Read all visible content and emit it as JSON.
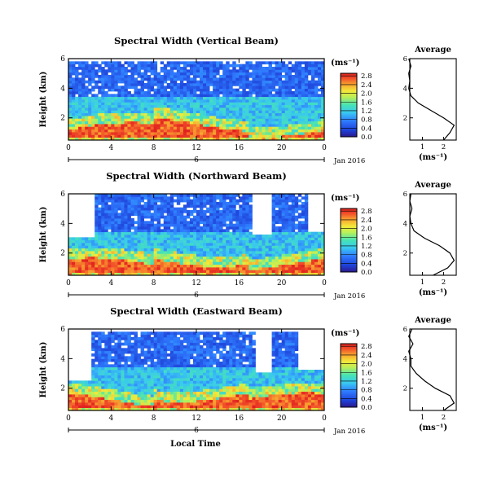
{
  "panels": [
    {
      "title": "Spectral Width (Vertical Beam)",
      "ylabel": "Height (km)",
      "xticks": [
        "0",
        "4",
        "8",
        "12",
        "16",
        "20",
        "0"
      ],
      "yticks": [
        "2",
        "4",
        "6"
      ],
      "date_mark": "6",
      "date_label": "Jan 2016",
      "avg_title": "Average"
    },
    {
      "title": "Spectral Width (Northward Beam)",
      "ylabel": "Height (km)",
      "xticks": [
        "0",
        "4",
        "8",
        "12",
        "16",
        "20",
        "0"
      ],
      "yticks": [
        "2",
        "4",
        "6"
      ],
      "date_mark": "6",
      "date_label": "Jan 2016",
      "avg_title": "Average"
    },
    {
      "title": "Spectral Width (Eastward Beam)",
      "ylabel": "Height (km)",
      "xticks": [
        "0",
        "4",
        "8",
        "12",
        "16",
        "20",
        "0"
      ],
      "yticks": [
        "2",
        "4",
        "6"
      ],
      "date_mark": "6",
      "date_label": "Jan 2016",
      "avg_title": "Average"
    }
  ],
  "colorbar": {
    "unit": "(ms⁻¹)",
    "ticks": [
      "0.0",
      "0.4",
      "0.8",
      "1.2",
      "1.6",
      "2.0",
      "2.4",
      "2.8"
    ]
  },
  "avg_xlabel": "(ms⁻¹)",
  "avg_xticks": [
    "1",
    "2"
  ],
  "avg_yticks": [
    "2",
    "4",
    "6"
  ],
  "xlabel": "Local Time",
  "chart_data": [
    {
      "type": "heatmap",
      "title": "Spectral Width (Vertical Beam)",
      "x_range_hours": [
        0,
        24
      ],
      "y_range_km": [
        0.5,
        6
      ],
      "color_range_ms": [
        0,
        2.8
      ],
      "summary": "High spectral width (2.4-2.8 m/s) in lowest ~1.5 km, decreasing to 0.2-0.6 m/s above 3.5 km",
      "average_profile": {
        "height_km": [
          0.5,
          1.0,
          1.5,
          2.0,
          2.5,
          3.0,
          3.5,
          4.0,
          4.5,
          5.0,
          5.5,
          6.0
        ],
        "width_ms": [
          2.0,
          2.3,
          2.5,
          2.0,
          1.4,
          0.8,
          0.45,
          0.35,
          0.4,
          0.35,
          0.45,
          0.35
        ]
      }
    },
    {
      "type": "heatmap",
      "title": "Spectral Width (Northward Beam)",
      "x_range_hours": [
        0,
        24
      ],
      "y_range_km": [
        0.5,
        6
      ],
      "color_range_ms": [
        0,
        2.8
      ],
      "summary": "High spectral width in lowest ~1.5 km; data gaps at 0-2.5 h and 17-19 h above 3 km",
      "average_profile": {
        "height_km": [
          0.5,
          1.0,
          1.5,
          2.0,
          2.5,
          3.0,
          3.5,
          4.0,
          4.5,
          5.0,
          5.5,
          6.0
        ],
        "width_ms": [
          1.5,
          2.2,
          2.5,
          2.3,
          1.8,
          1.1,
          0.6,
          0.45,
          0.4,
          0.5,
          0.4,
          0.45
        ]
      }
    },
    {
      "type": "heatmap",
      "title": "Spectral Width (Eastward Beam)",
      "x_range_hours": [
        0,
        24
      ],
      "y_range_km": [
        0.5,
        6
      ],
      "color_range_ms": [
        0,
        2.8
      ],
      "summary": "High spectral width in lowest ~1.5 km; data gap at 0-2 h above 2.5 km",
      "average_profile": {
        "height_km": [
          0.5,
          1.0,
          1.5,
          2.0,
          2.5,
          3.0,
          3.5,
          4.0,
          4.5,
          5.0,
          5.5,
          6.0
        ],
        "width_ms": [
          2.0,
          2.5,
          2.3,
          1.6,
          1.1,
          0.7,
          0.45,
          0.45,
          0.35,
          0.55,
          0.35,
          0.5
        ]
      }
    }
  ]
}
